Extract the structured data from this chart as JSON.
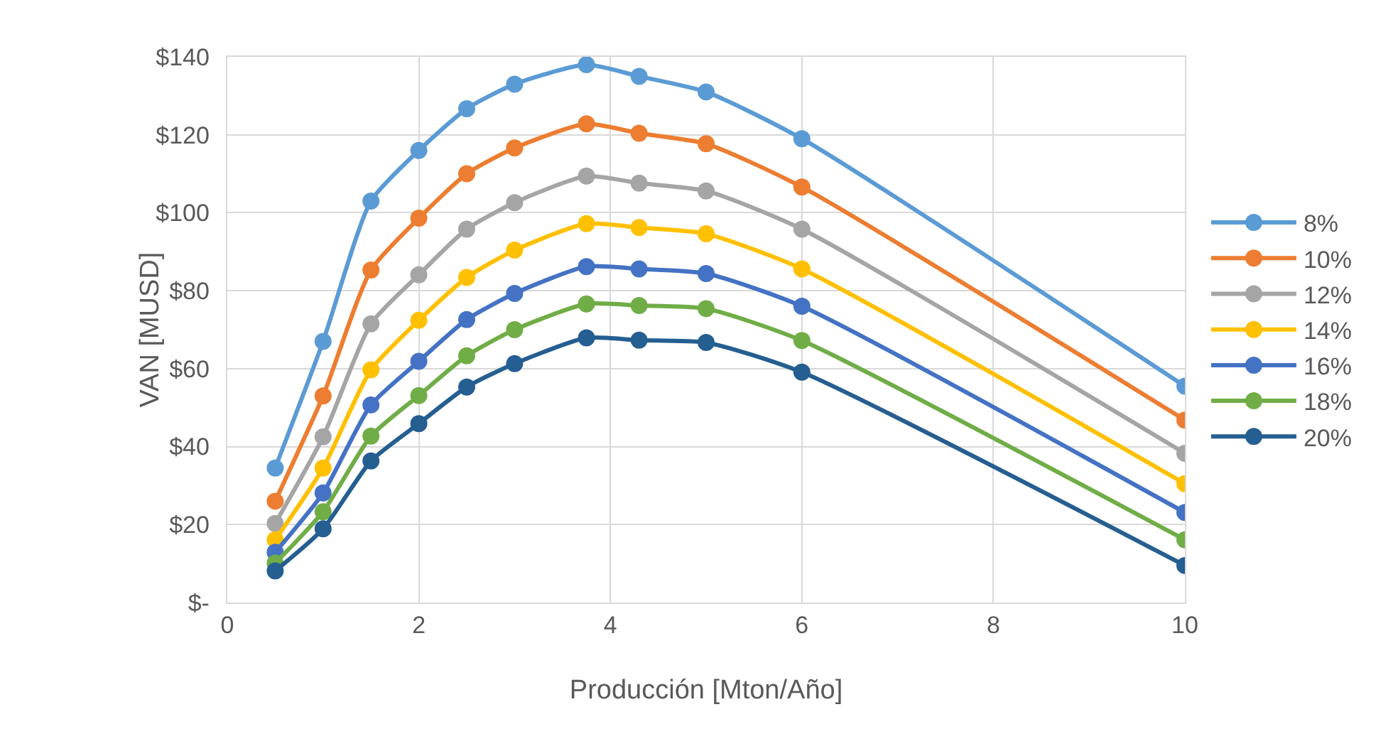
{
  "chart_data": {
    "type": "line",
    "xlabel": "Producción [Mton/Año]",
    "ylabel": "VAN [MUSD]",
    "x": [
      0.5,
      1,
      1.5,
      2,
      2.5,
      3,
      3.75,
      4.3,
      5,
      6,
      10
    ],
    "series": [
      {
        "name": "8%",
        "color": "#5b9bd5",
        "values": [
          34.5,
          67,
          103,
          116,
          126.7,
          133,
          138,
          135,
          131,
          119,
          55.5
        ]
      },
      {
        "name": "10%",
        "color": "#ed7d31",
        "values": [
          26,
          53,
          85.3,
          98.6,
          110,
          116.6,
          122.8,
          120.4,
          117.7,
          106.6,
          46.8
        ]
      },
      {
        "name": "12%",
        "color": "#a5a5a5",
        "values": [
          20.3,
          42.5,
          71.5,
          84.1,
          95.8,
          102.6,
          109.4,
          107.6,
          105.6,
          95.8,
          38.3
        ]
      },
      {
        "name": "14%",
        "color": "#ffc000",
        "values": [
          16.1,
          34.5,
          59.7,
          72.4,
          83.4,
          90.4,
          97.2,
          96.2,
          94.6,
          85.6,
          30.5
        ]
      },
      {
        "name": "16%",
        "color": "#4472c4",
        "values": [
          12.9,
          28.1,
          50.7,
          61.9,
          72.6,
          79.3,
          86.2,
          85.6,
          84.4,
          76,
          23.1
        ]
      },
      {
        "name": "18%",
        "color": "#70ad47",
        "values": [
          10.1,
          23.3,
          42.7,
          53.1,
          63.3,
          70,
          76.6,
          76.2,
          75.4,
          67.2,
          16.1
        ]
      },
      {
        "name": "20%",
        "color": "#255e91",
        "values": [
          8.1,
          18.9,
          36.3,
          45.9,
          55.3,
          61.3,
          67.9,
          67.3,
          66.7,
          59.1,
          9.5
        ]
      }
    ],
    "xlim": [
      0,
      10
    ],
    "xticks": [
      0,
      2,
      4,
      6,
      8,
      10
    ],
    "ylim": [
      0,
      140
    ],
    "yticks": [
      {
        "value": 0,
        "label": "$-"
      },
      {
        "value": 20,
        "label": "$20"
      },
      {
        "value": 40,
        "label": "$40"
      },
      {
        "value": 60,
        "label": "$60"
      },
      {
        "value": 80,
        "label": "$80"
      },
      {
        "value": 100,
        "label": "$100"
      },
      {
        "value": 120,
        "label": "$120"
      },
      {
        "value": 140,
        "label": "$140"
      }
    ],
    "grid": true,
    "legend": "right",
    "marker": "circle",
    "line_style": "solid"
  }
}
